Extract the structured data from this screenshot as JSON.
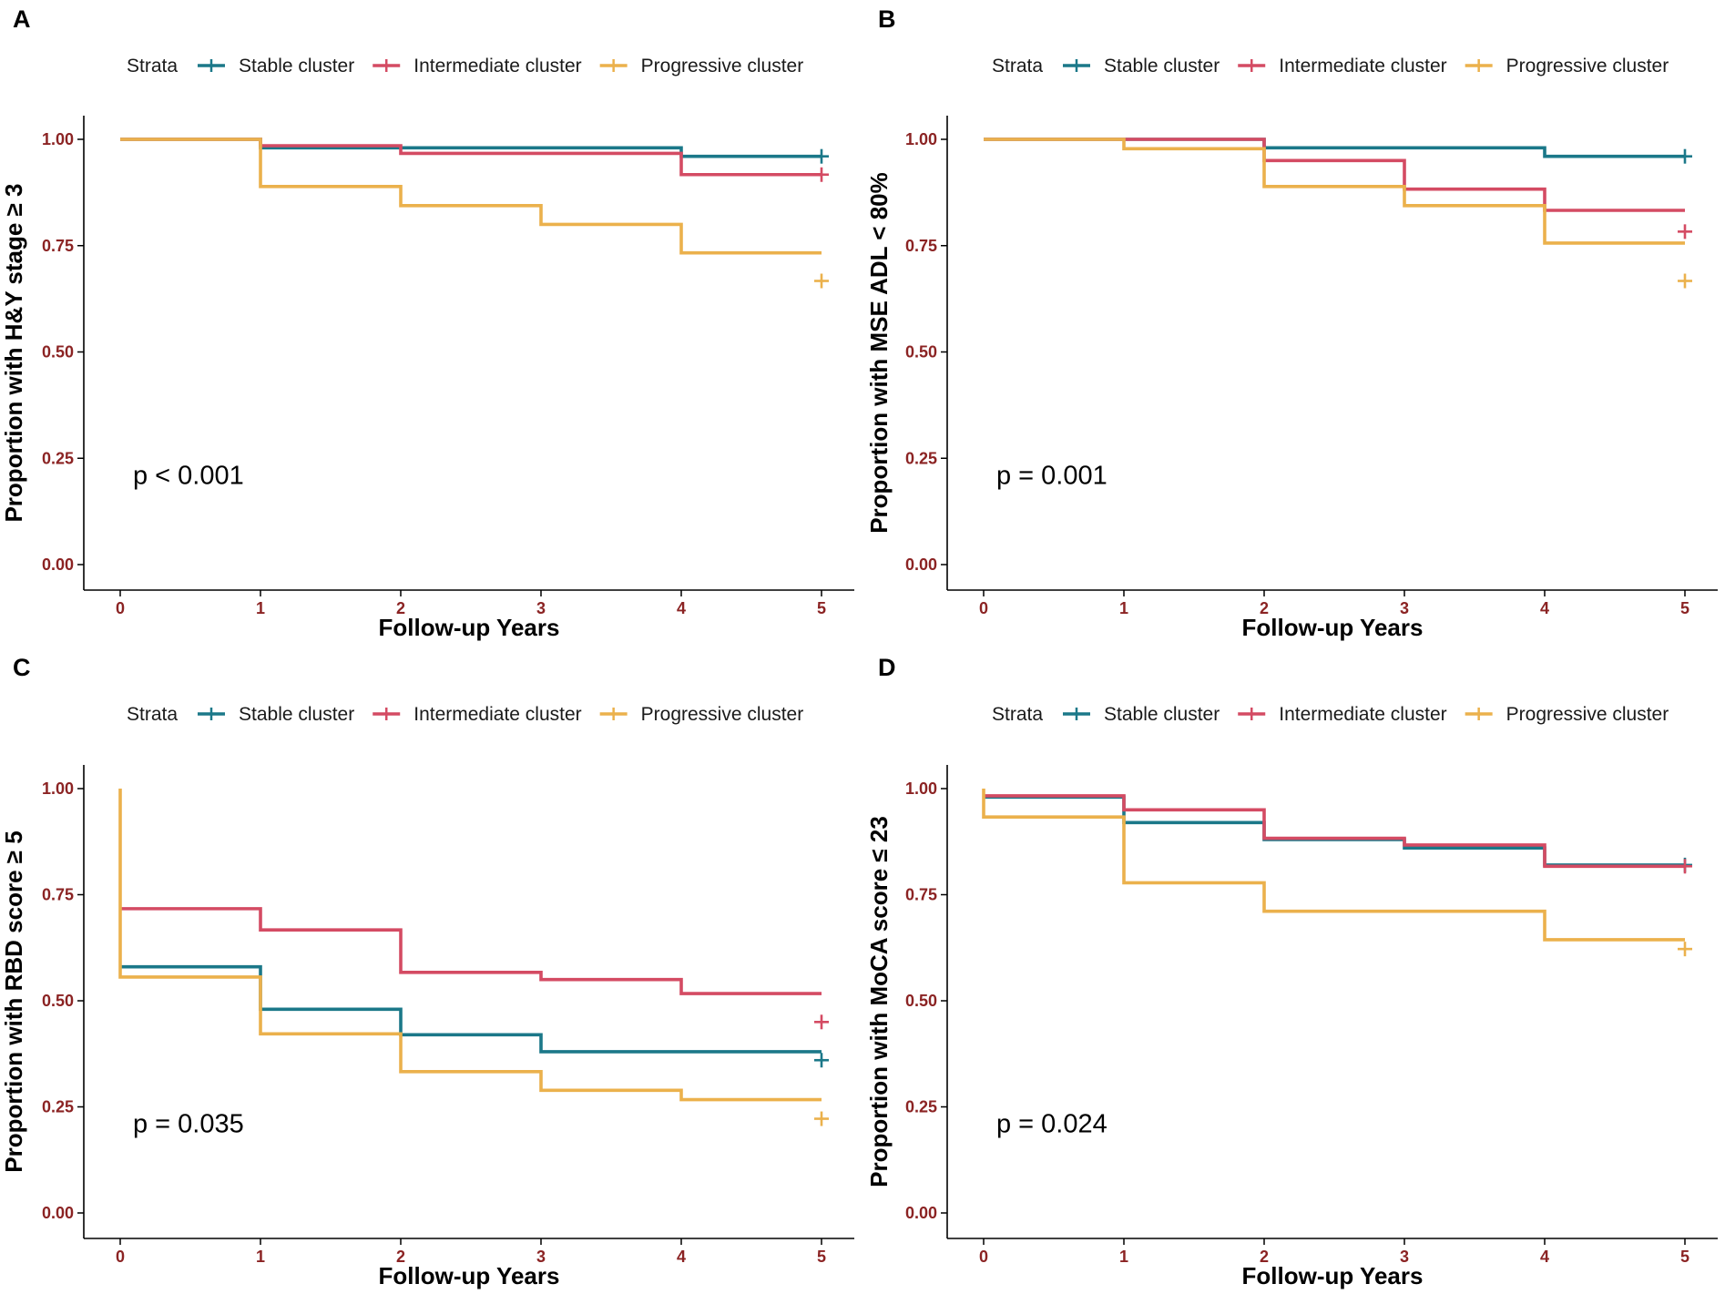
{
  "legend_title": "Strata",
  "colors": {
    "stable": "#1b7889",
    "intermediate": "#d44b63",
    "progressive": "#ebb14c",
    "tick_text": "#8b2323",
    "axis": "#000000"
  },
  "chart_data": [
    {
      "panel": "A",
      "type": "line",
      "step": "post",
      "xlabel": "Follow-up Years",
      "ylabel": "Proportion with H&Y stage ≥ 3",
      "xlim": [
        0,
        5
      ],
      "ylim": [
        0,
        1
      ],
      "x_ticks": [
        "0",
        "1",
        "2",
        "3",
        "4",
        "5"
      ],
      "y_ticks": [
        "0.00",
        "0.25",
        "0.50",
        "0.75",
        "1.00"
      ],
      "annotation": "p < 0.001",
      "series": [
        {
          "name": "Stable cluster",
          "color": "#1b7889",
          "x": [
            0,
            1,
            2,
            3,
            4,
            5
          ],
          "y": [
            1.0,
            0.98,
            0.98,
            0.98,
            0.96,
            0.96
          ],
          "censor": [
            [
              5,
              0.96
            ]
          ]
        },
        {
          "name": "Intermediate cluster",
          "color": "#d44b63",
          "x": [
            0,
            1,
            2,
            3,
            4,
            5
          ],
          "y": [
            1.0,
            0.985,
            0.967,
            0.967,
            0.917,
            0.917
          ],
          "censor": [
            [
              5,
              0.917
            ]
          ]
        },
        {
          "name": "Progressive cluster",
          "color": "#ebb14c",
          "x": [
            0,
            1,
            2,
            3,
            4,
            5
          ],
          "y": [
            1.0,
            0.889,
            0.844,
            0.8,
            0.733,
            0.733
          ],
          "censor": [
            [
              5,
              0.667
            ]
          ]
        }
      ]
    },
    {
      "panel": "B",
      "type": "line",
      "step": "post",
      "xlabel": "Follow-up Years",
      "ylabel": "Proportion with MSE ADL < 80%",
      "xlim": [
        0,
        5
      ],
      "ylim": [
        0,
        1
      ],
      "x_ticks": [
        "0",
        "1",
        "2",
        "3",
        "4",
        "5"
      ],
      "y_ticks": [
        "0.00",
        "0.25",
        "0.50",
        "0.75",
        "1.00"
      ],
      "annotation": "p = 0.001",
      "series": [
        {
          "name": "Stable cluster",
          "color": "#1b7889",
          "x": [
            0,
            1,
            2,
            3,
            4,
            5
          ],
          "y": [
            1.0,
            1.0,
            0.98,
            0.98,
            0.96,
            0.96
          ],
          "censor": [
            [
              5,
              0.96
            ]
          ]
        },
        {
          "name": "Intermediate cluster",
          "color": "#d44b63",
          "x": [
            0,
            1,
            2,
            3,
            4,
            5
          ],
          "y": [
            1.0,
            1.0,
            0.95,
            0.883,
            0.833,
            0.833
          ],
          "censor": [
            [
              5,
              0.783
            ]
          ]
        },
        {
          "name": "Progressive cluster",
          "color": "#ebb14c",
          "x": [
            0,
            1,
            2,
            3,
            4,
            5
          ],
          "y": [
            1.0,
            0.978,
            0.889,
            0.844,
            0.756,
            0.756
          ],
          "censor": [
            [
              5,
              0.667
            ]
          ]
        }
      ]
    },
    {
      "panel": "C",
      "type": "line",
      "step": "post",
      "xlabel": "Follow-up Years",
      "ylabel": "Proportion with RBD score ≥ 5",
      "xlim": [
        0,
        5
      ],
      "ylim": [
        0,
        1
      ],
      "x_ticks": [
        "0",
        "1",
        "2",
        "3",
        "4",
        "5"
      ],
      "y_ticks": [
        "0.00",
        "0.25",
        "0.50",
        "0.75",
        "1.00"
      ],
      "annotation": "p = 0.035",
      "series": [
        {
          "name": "Stable cluster",
          "color": "#1b7889",
          "x": [
            0,
            1,
            2,
            3,
            4,
            5
          ],
          "y": [
            0.58,
            0.48,
            0.42,
            0.38,
            0.38,
            0.38
          ],
          "censor": [
            [
              5,
              0.36
            ]
          ]
        },
        {
          "name": "Intermediate cluster",
          "color": "#d44b63",
          "x": [
            0,
            1,
            2,
            3,
            4,
            5
          ],
          "y": [
            0.717,
            0.667,
            0.567,
            0.55,
            0.517,
            0.517
          ],
          "censor": [
            [
              5,
              0.45
            ]
          ]
        },
        {
          "name": "Progressive cluster",
          "color": "#ebb14c",
          "x": [
            0,
            0,
            1,
            2,
            3,
            4,
            5
          ],
          "y": [
            1.0,
            0.556,
            0.422,
            0.333,
            0.289,
            0.267,
            0.267
          ],
          "censor": [
            [
              5,
              0.222
            ]
          ]
        }
      ]
    },
    {
      "panel": "D",
      "type": "line",
      "step": "post",
      "xlabel": "Follow-up Years",
      "ylabel": "Proportion with MoCA score ≤ 23",
      "xlim": [
        0,
        5
      ],
      "ylim": [
        0,
        1
      ],
      "x_ticks": [
        "0",
        "1",
        "2",
        "3",
        "4",
        "5"
      ],
      "y_ticks": [
        "0.00",
        "0.25",
        "0.50",
        "0.75",
        "1.00"
      ],
      "annotation": "p = 0.024",
      "series": [
        {
          "name": "Stable cluster",
          "color": "#1b7889",
          "x": [
            0,
            1,
            2,
            3,
            4,
            5
          ],
          "y": [
            0.98,
            0.92,
            0.88,
            0.86,
            0.82,
            0.82
          ],
          "censor": [
            [
              5,
              0.82
            ]
          ]
        },
        {
          "name": "Intermediate cluster",
          "color": "#d44b63",
          "x": [
            0,
            1,
            2,
            3,
            4,
            5
          ],
          "y": [
            0.983,
            0.95,
            0.883,
            0.867,
            0.817,
            0.817
          ],
          "censor": [
            [
              5,
              0.817
            ]
          ]
        },
        {
          "name": "Progressive cluster",
          "color": "#ebb14c",
          "x": [
            0,
            0,
            1,
            2,
            3,
            4,
            5
          ],
          "y": [
            1.0,
            0.933,
            0.778,
            0.711,
            0.711,
            0.644,
            0.644
          ],
          "censor": [
            [
              5,
              0.622
            ]
          ]
        }
      ]
    }
  ]
}
